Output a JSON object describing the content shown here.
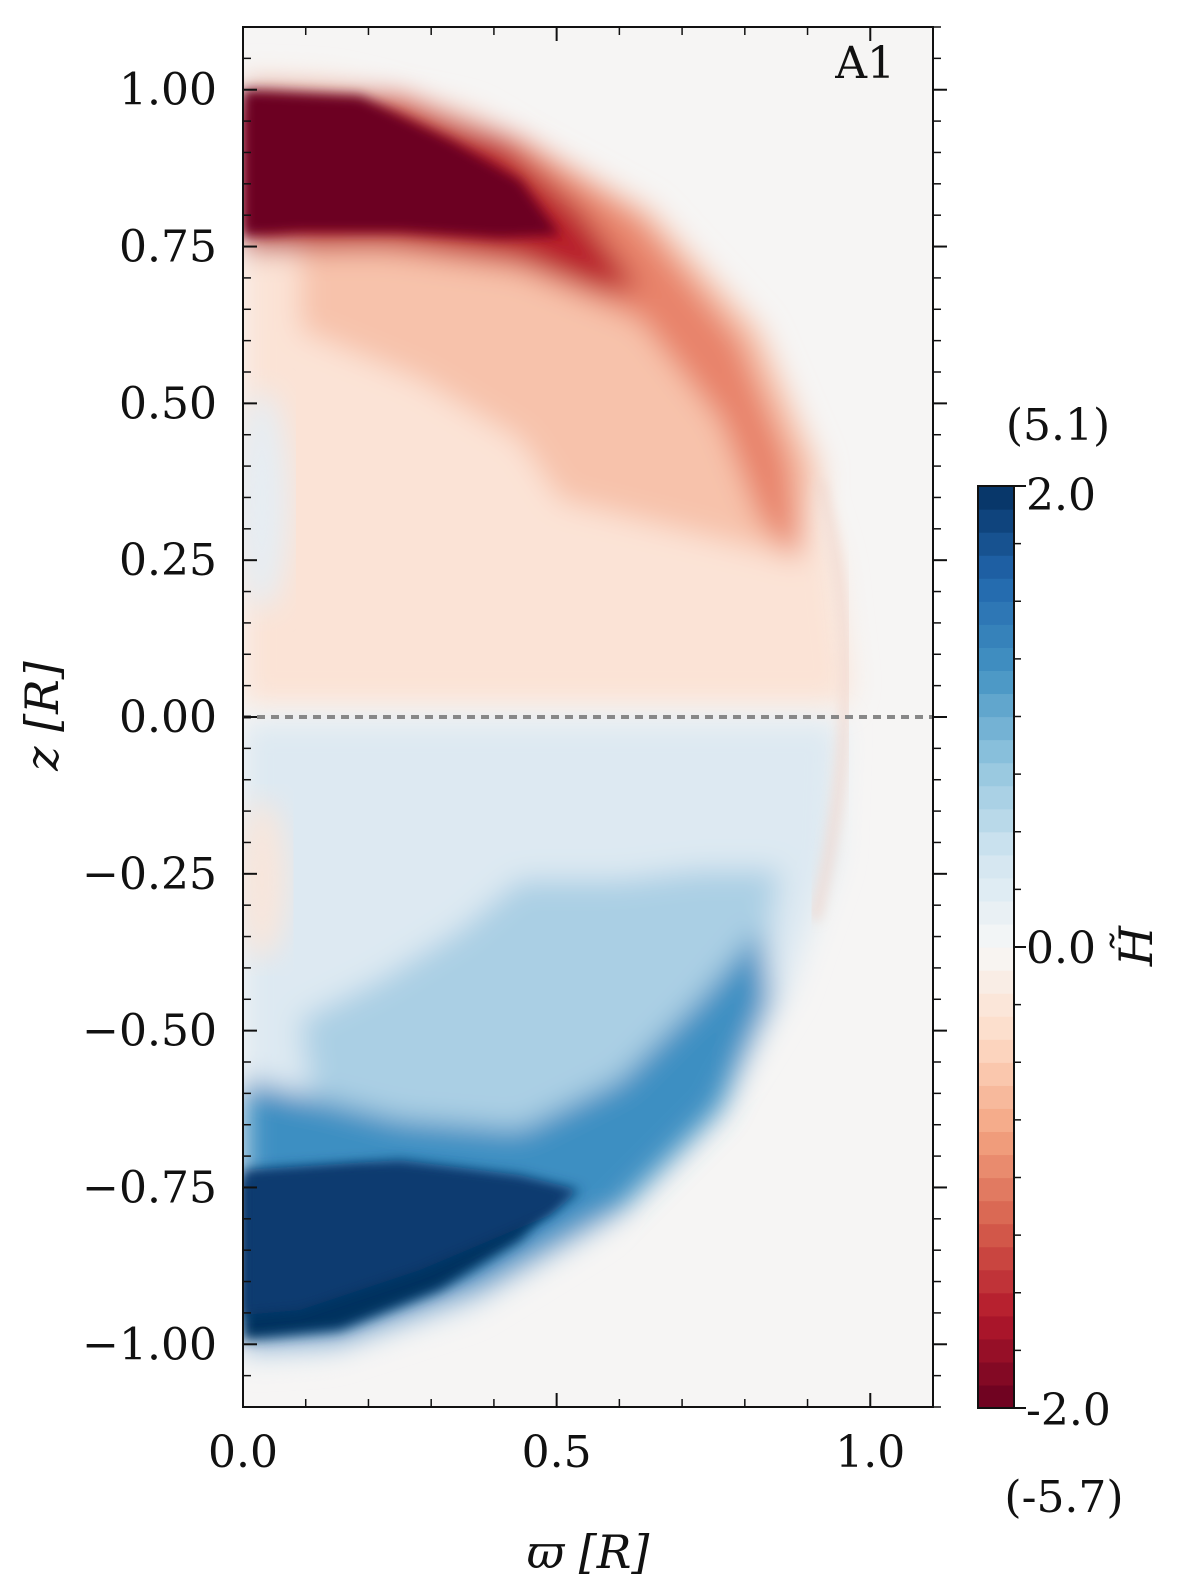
{
  "chart_data": {
    "type": "heatmap",
    "panel_label": "A1",
    "xlabel": "ϖ [R]",
    "ylabel": "z [R]",
    "xlim": [
      0.0,
      1.1
    ],
    "ylim": [
      -1.1,
      1.1
    ],
    "x_ticks": [
      {
        "value": 0.0,
        "label": "0.0"
      },
      {
        "value": 0.5,
        "label": "0.5"
      },
      {
        "value": 1.0,
        "label": "1.0"
      }
    ],
    "y_ticks": [
      {
        "value": 1.0,
        "label": "1.00"
      },
      {
        "value": 0.75,
        "label": "0.75"
      },
      {
        "value": 0.5,
        "label": "0.50"
      },
      {
        "value": 0.25,
        "label": "0.25"
      },
      {
        "value": 0.0,
        "label": "0.00"
      },
      {
        "value": -0.25,
        "label": "−0.25"
      },
      {
        "value": -0.5,
        "label": "−0.50"
      },
      {
        "value": -0.75,
        "label": "−0.75"
      },
      {
        "value": -1.0,
        "label": "−1.00"
      }
    ],
    "equator_line": {
      "z": 0.0,
      "style": "dashed",
      "color": "#888888"
    },
    "colorbar": {
      "label": "H̃",
      "min": -2.0,
      "max": 2.0,
      "min_label": "-2.0",
      "mid_label": "0.0",
      "max_label": "2.0",
      "true_max_label": "(5.1)",
      "true_min_label": "(-5.7)",
      "colormap": "RdBu",
      "levels": 40
    },
    "colors": {
      "negative_extreme": "#67001f",
      "negative_mid": "#f4a582",
      "zero": "#f7f7f7",
      "positive_mid": "#92c5de",
      "positive_extreme": "#053061"
    }
  }
}
